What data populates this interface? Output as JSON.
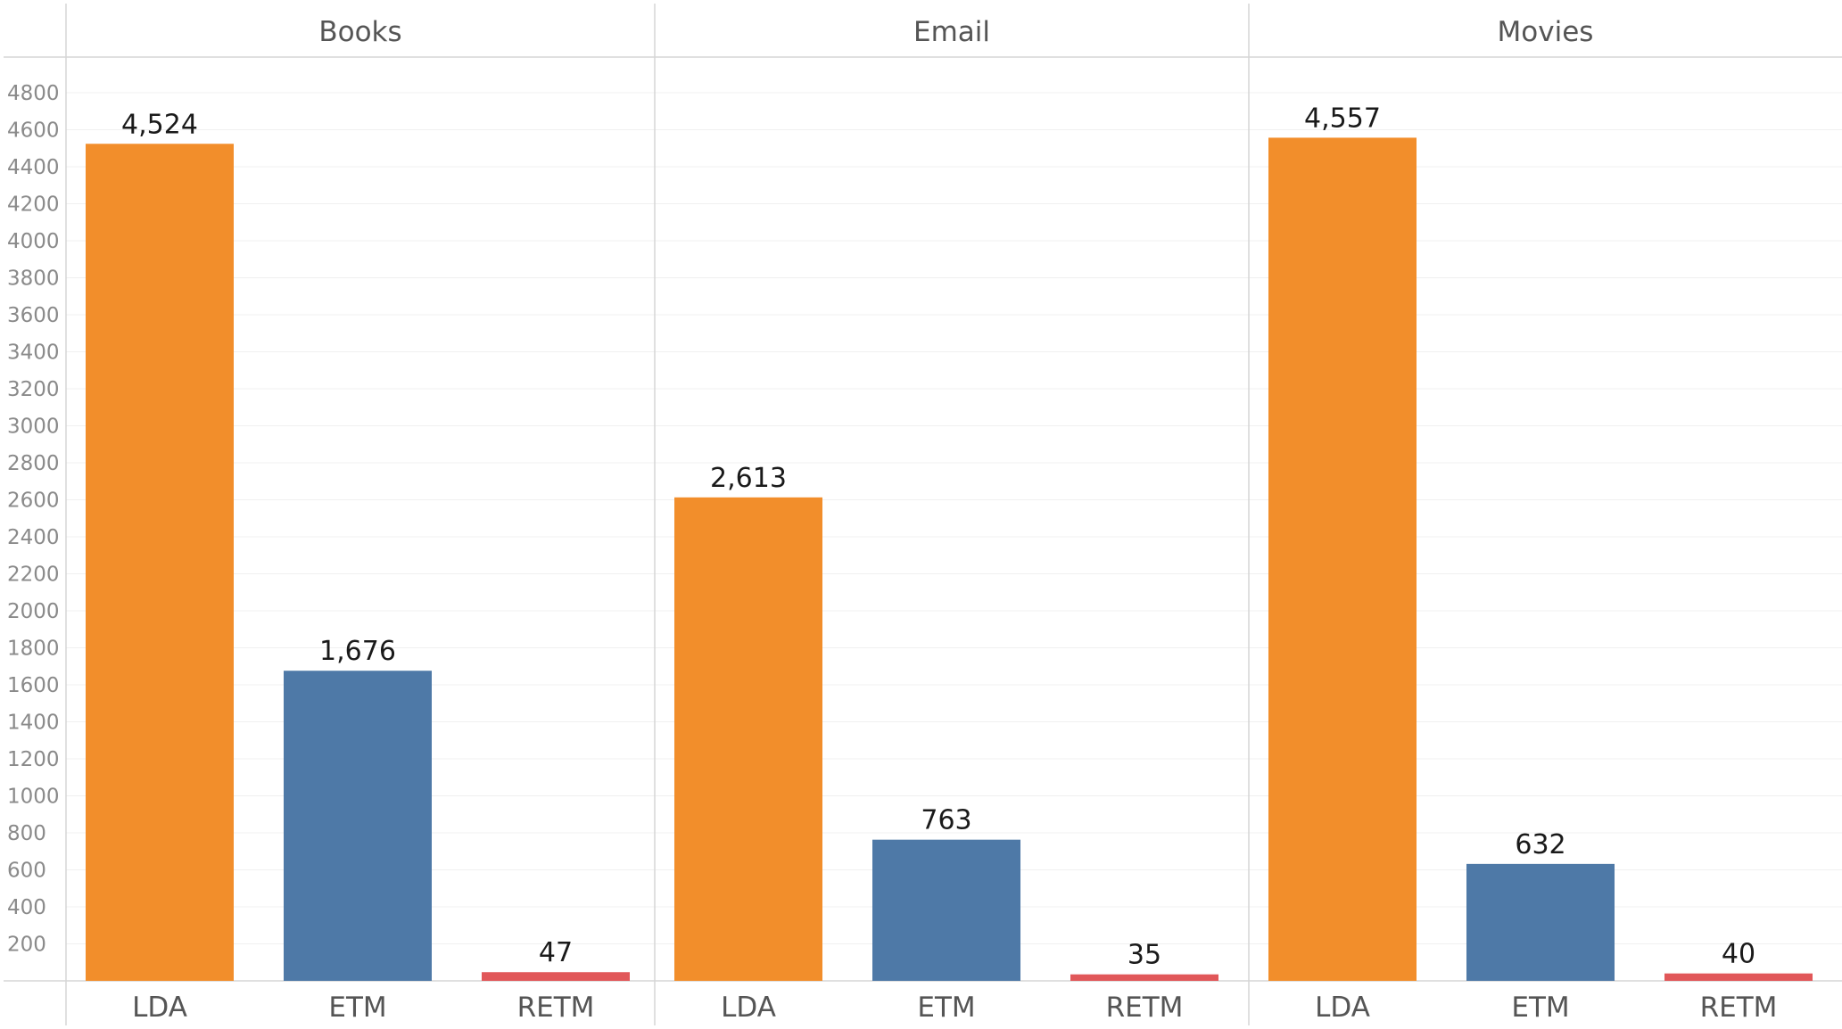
{
  "colors": {
    "LDA": "#F28E2B",
    "ETM": "#4E79A7",
    "RETM": "#E15759"
  },
  "chart_data": {
    "type": "bar",
    "title": "",
    "xlabel": "",
    "ylabel": "",
    "ylim": [
      0,
      5050
    ],
    "yticks": [
      200,
      400,
      600,
      800,
      1000,
      1200,
      1400,
      1600,
      1800,
      2000,
      2200,
      2400,
      2600,
      2800,
      3000,
      3200,
      3400,
      3600,
      3800,
      4000,
      4200,
      4400,
      4600,
      4800
    ],
    "grid": true,
    "legend": "none",
    "categories": [
      "LDA",
      "ETM",
      "RETM"
    ],
    "panels": [
      {
        "name": "Books",
        "values": [
          4524,
          1676,
          47
        ],
        "labels": [
          "4,524",
          "1,676",
          "47"
        ]
      },
      {
        "name": "Email",
        "values": [
          2613,
          763,
          35
        ],
        "labels": [
          "2,613",
          "763",
          "35"
        ]
      },
      {
        "name": "Movies",
        "values": [
          4557,
          632,
          40
        ],
        "labels": [
          "4,557",
          "632",
          "40"
        ]
      }
    ]
  }
}
